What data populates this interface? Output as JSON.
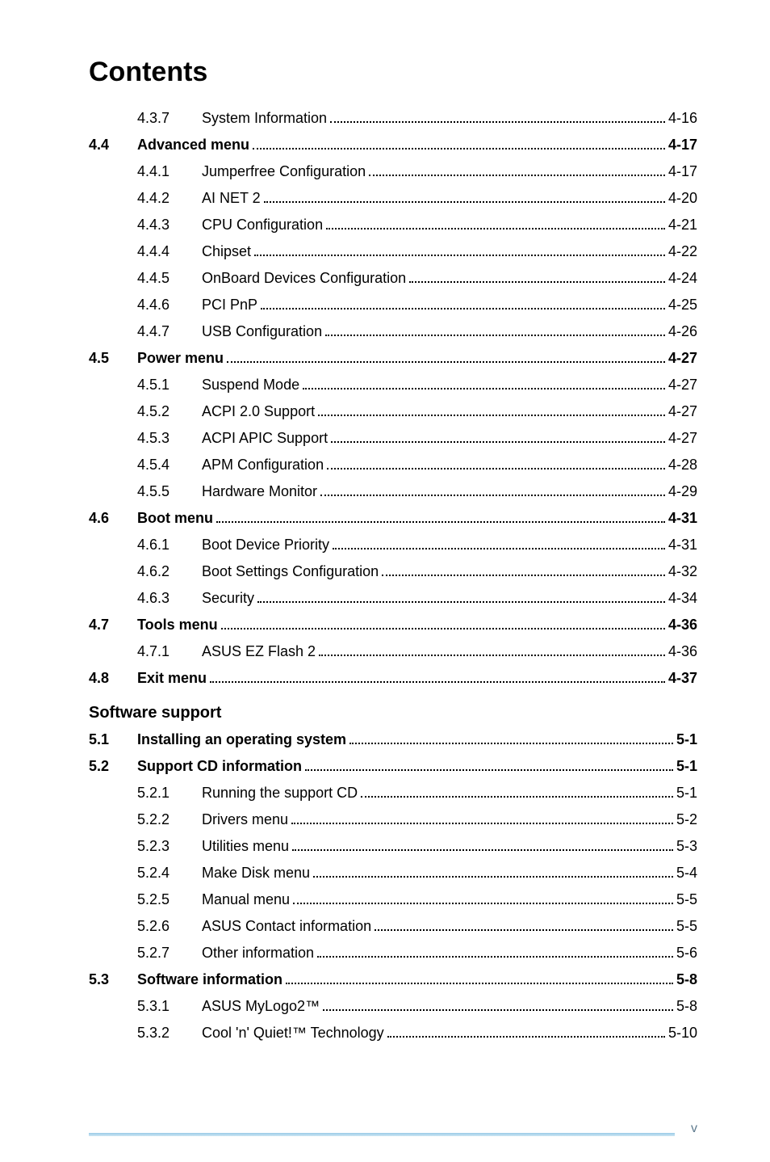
{
  "title": "Contents",
  "sections": [
    {
      "sec": "",
      "subs": [
        {
          "num": "4.3.7",
          "label": "System Information",
          "page": "4-16"
        }
      ]
    },
    {
      "sec": "4.4",
      "sec_label": "Advanced menu",
      "sec_page": "4-17",
      "subs": [
        {
          "num": "4.4.1",
          "label": "Jumperfree Configuration",
          "page": "4-17"
        },
        {
          "num": "4.4.2",
          "label": "AI NET 2",
          "page": "4-20"
        },
        {
          "num": "4.4.3",
          "label": "CPU Configuration",
          "page": "4-21"
        },
        {
          "num": "4.4.4",
          "label": "Chipset",
          "page": "4-22"
        },
        {
          "num": "4.4.5",
          "label": "OnBoard Devices Configuration",
          "page": "4-24"
        },
        {
          "num": "4.4.6",
          "label": "PCI PnP",
          "page": "4-25"
        },
        {
          "num": "4.4.7",
          "label": "USB Configuration",
          "page": "4-26"
        }
      ]
    },
    {
      "sec": "4.5",
      "sec_label": "Power menu",
      "sec_page": "4-27",
      "subs": [
        {
          "num": "4.5.1",
          "label": "Suspend Mode",
          "page": "4-27"
        },
        {
          "num": "4.5.2",
          "label": "ACPI 2.0 Support",
          "page": "4-27"
        },
        {
          "num": "4.5.3",
          "label": "ACPI APIC Support",
          "page": "4-27"
        },
        {
          "num": "4.5.4",
          "label": "APM Configuration",
          "page": "4-28"
        },
        {
          "num": "4.5.5",
          "label": "Hardware Monitor",
          "page": "4-29"
        }
      ]
    },
    {
      "sec": "4.6",
      "sec_label": "Boot menu",
      "sec_page": "4-31",
      "subs": [
        {
          "num": "4.6.1",
          "label": "Boot Device Priority",
          "page": "4-31"
        },
        {
          "num": "4.6.2",
          "label": "Boot Settings Configuration",
          "page": "4-32"
        },
        {
          "num": "4.6.3",
          "label": "Security",
          "page": "4-34"
        }
      ]
    },
    {
      "sec": "4.7",
      "sec_label": "Tools menu",
      "sec_page": "4-36",
      "subs": [
        {
          "num": "4.7.1",
          "label": "ASUS EZ Flash 2",
          "page": "4-36"
        }
      ]
    },
    {
      "sec": "4.8",
      "sec_label": "Exit menu",
      "sec_page": "4-37",
      "subs": []
    }
  ],
  "chapter_heading": "Software support",
  "sections2": [
    {
      "sec": "5.1",
      "sec_label": "Installing an operating system",
      "sec_page": "5-1",
      "subs": []
    },
    {
      "sec": "5.2",
      "sec_label": "Support CD information",
      "sec_page": "5-1",
      "subs": [
        {
          "num": "5.2.1",
          "label": "Running the support CD",
          "page": "5-1"
        },
        {
          "num": "5.2.2",
          "label": "Drivers menu",
          "page": "5-2"
        },
        {
          "num": "5.2.3",
          "label": "Utilities menu",
          "page": "5-3"
        },
        {
          "num": "5.2.4",
          "label": "Make Disk menu",
          "page": "5-4"
        },
        {
          "num": "5.2.5",
          "label": "Manual menu",
          "page": "5-5"
        },
        {
          "num": "5.2.6",
          "label": "ASUS Contact information",
          "page": "5-5"
        },
        {
          "num": "5.2.7",
          "label": "Other information",
          "page": "5-6"
        }
      ]
    },
    {
      "sec": "5.3",
      "sec_label": "Software information",
      "sec_page": "5-8",
      "subs": [
        {
          "num": "5.3.1",
          "label": "ASUS MyLogo2™",
          "page": "5-8"
        },
        {
          "num": "5.3.2",
          "label": "Cool 'n' Quiet!™ Technology",
          "page": "5-10"
        }
      ]
    }
  ],
  "footer_pagenum": "v"
}
